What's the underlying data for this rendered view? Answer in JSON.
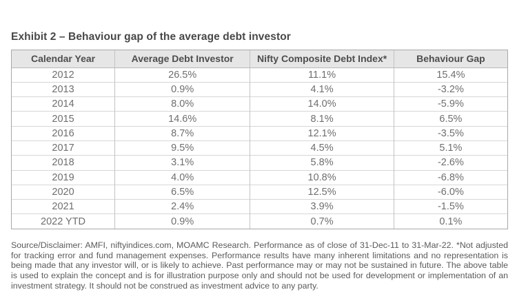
{
  "exhibit": {
    "title": "Exhibit 2 – Behaviour gap of the average debt investor"
  },
  "table": {
    "columns": [
      "Calendar Year",
      "Average Debt Investor",
      "Nifty Composite Debt Index*",
      "Behaviour Gap"
    ],
    "rows": [
      [
        "2012",
        "26.5%",
        "11.1%",
        "15.4%"
      ],
      [
        "2013",
        "0.9%",
        "4.1%",
        "-3.2%"
      ],
      [
        "2014",
        "8.0%",
        "14.0%",
        "-5.9%"
      ],
      [
        "2015",
        "14.6%",
        "8.1%",
        "6.5%"
      ],
      [
        "2016",
        "8.7%",
        "12.1%",
        "-3.5%"
      ],
      [
        "2017",
        "9.5%",
        "4.5%",
        "5.1%"
      ],
      [
        "2018",
        "3.1%",
        "5.8%",
        "-2.6%"
      ],
      [
        "2019",
        "4.0%",
        "10.8%",
        "-6.8%"
      ],
      [
        "2020",
        "6.5%",
        "12.5%",
        "-6.0%"
      ],
      [
        "2021",
        "2.4%",
        "3.9%",
        "-1.5%"
      ],
      [
        "2022 YTD",
        "0.9%",
        "0.7%",
        "0.1%"
      ]
    ]
  },
  "footer": {
    "disclaimer": "Source/Disclaimer: AMFI, niftyindices.com, MOAMC Research. Performance as of close of 31-Dec-11 to 31-Mar-22. *Not adjusted for tracking error and fund management expenses. Performance results have many inherent limitations and no representation is being made that any investor will, or is likely to achieve. Past performance may or may not be sustained in future. The above table is used to explain the concept and is for illustration purpose only and should not be used for development or implementation of an investment strategy. It should not be construed as investment advice to any party."
  },
  "colors": {
    "title_text": "#484848",
    "header_bg": "#e6e6e6",
    "header_text": "#4d4d4d",
    "body_text": "#6e6e6e",
    "footer_text": "#5a5a5a",
    "border_outer": "#a8a8a8",
    "border_inner": "#c2c2c2",
    "border_row": "#d6d6d6",
    "border_header_bottom": "#b8b8b8"
  }
}
